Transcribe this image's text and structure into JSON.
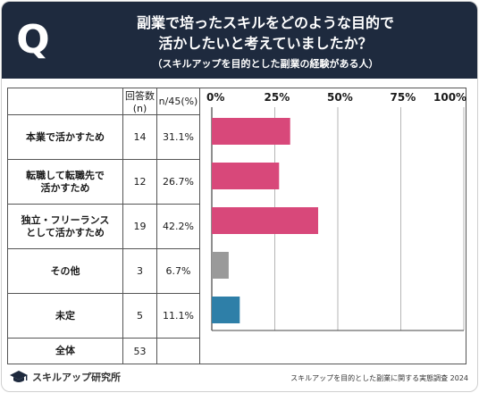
{
  "header": {
    "q_letter": "Q",
    "title_line1": "副業で培ったスキルをどのような目的で",
    "title_line2": "活かしたいと考えていましたか？",
    "subtitle": "（スキルアップを目的とした副業の経験がある人）"
  },
  "table": {
    "col_count_header": "回答数(n)",
    "col_pct_header": "n/45(%)",
    "rows": [
      {
        "label_lines": [
          "本業で活かすため"
        ],
        "count": "14",
        "pct": "31.1%"
      },
      {
        "label_lines": [
          "転職して転職先で",
          "活かすため"
        ],
        "count": "12",
        "pct": "26.7%"
      },
      {
        "label_lines": [
          "独立・フリーランス",
          "として活かすため"
        ],
        "count": "19",
        "pct": "42.2%"
      },
      {
        "label_lines": [
          "その他"
        ],
        "count": "3",
        "pct": "6.7%"
      },
      {
        "label_lines": [
          "未定"
        ],
        "count": "5",
        "pct": "11.1%"
      }
    ],
    "total": {
      "label": "全体",
      "count": "53"
    }
  },
  "chart_data": {
    "type": "bar",
    "orientation": "horizontal",
    "categories": [
      "本業で活かすため",
      "転職して転職先で活かすため",
      "独立・フリーランスとして活かすため",
      "その他",
      "未定"
    ],
    "values": [
      31.1,
      26.7,
      42.2,
      6.7,
      11.1
    ],
    "xlim": [
      0,
      100
    ],
    "ticks": [
      "0%",
      "25%",
      "50%",
      "75%",
      "100%"
    ],
    "tick_values": [
      0,
      25,
      50,
      75,
      100
    ],
    "bar_colors": [
      "#d8487a",
      "#d8487a",
      "#d8487a",
      "#9a9a9a",
      "#2e7fa8"
    ],
    "grid": true
  },
  "footer": {
    "brand": "スキルアップ研究所",
    "source": "スキルアップを目的とした副業に関する実態調査 2024"
  }
}
